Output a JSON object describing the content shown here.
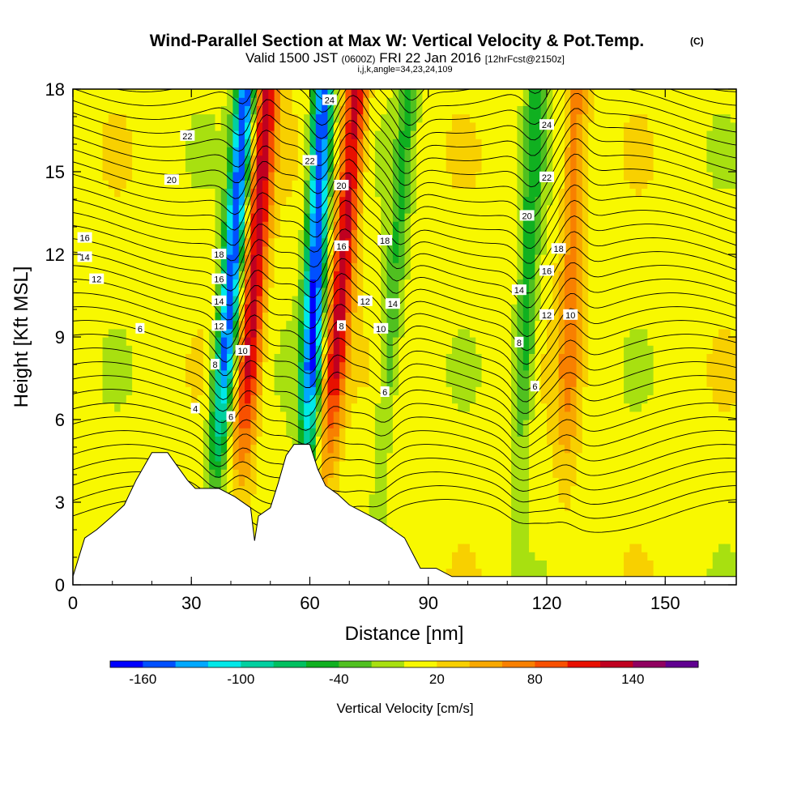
{
  "title": "Wind-Parallel Section at Max W: Vertical Velocity & Pot.Temp.",
  "copyright": "(C)",
  "subtitle": {
    "valid": "Valid 1500 JST",
    "zulu": "(0600Z)",
    "date": "FRI 22 Jan 2016",
    "fcst": "[12hrFcst@2150z]"
  },
  "indices": "i,j,k,angle=34,23,24,109",
  "chart_data": {
    "type": "heatmap",
    "xlabel": "Distance [nm]",
    "ylabel": "Height [Kft MSL]",
    "xlim": [
      0,
      168
    ],
    "ylim": [
      0,
      18
    ],
    "xticks": [
      0,
      30,
      60,
      90,
      120,
      150
    ],
    "yticks": [
      0,
      3,
      6,
      9,
      12,
      15,
      18
    ],
    "field": "Vertical Velocity [cm/s]",
    "colorbar": {
      "label": "Vertical Velocity [cm/s]",
      "tick_labels": [
        "-160",
        "-100",
        "-40",
        "20",
        "80",
        "140"
      ],
      "tick_values": [
        -160,
        -100,
        -40,
        20,
        80,
        140
      ],
      "range": [
        -180,
        180
      ],
      "colors": [
        "#0000ff",
        "#0050ff",
        "#00a8ff",
        "#00e8e8",
        "#00d0a0",
        "#00c060",
        "#10b020",
        "#50c020",
        "#a8e010",
        "#f8f800",
        "#f8d000",
        "#f8a800",
        "#f88000",
        "#f85000",
        "#e81000",
        "#c00020",
        "#900060",
        "#600090"
      ]
    },
    "wave_bands": [
      {
        "x_base": 34,
        "lean": 0.55,
        "sign": "negative",
        "peak": -170
      },
      {
        "x_base": 41,
        "lean": 0.45,
        "sign": "positive",
        "peak": 120
      },
      {
        "x_base": 58,
        "lean": 0.3,
        "sign": "negative",
        "peak": -175
      },
      {
        "x_base": 62,
        "lean": 0.55,
        "sign": "positive",
        "peak": 120
      },
      {
        "x_base": 76,
        "lean": 0.5,
        "sign": "negative",
        "peak": -50
      },
      {
        "x_base": 112,
        "lean": 0.3,
        "sign": "negative",
        "peak": -60
      },
      {
        "x_base": 124,
        "lean": 0.2,
        "sign": "positive",
        "peak": 60
      }
    ],
    "terrain": [
      [
        0,
        0.3
      ],
      [
        3,
        1.7
      ],
      [
        6,
        2.0
      ],
      [
        10,
        2.5
      ],
      [
        13,
        2.9
      ],
      [
        16,
        3.8
      ],
      [
        20,
        4.8
      ],
      [
        24,
        4.8
      ],
      [
        27,
        4.2
      ],
      [
        29,
        3.8
      ],
      [
        31,
        3.5
      ],
      [
        34,
        3.5
      ],
      [
        37,
        3.5
      ],
      [
        41,
        3.2
      ],
      [
        45,
        2.8
      ],
      [
        46,
        1.6
      ],
      [
        47,
        2.5
      ],
      [
        50,
        2.8
      ],
      [
        52,
        3.7
      ],
      [
        54,
        4.7
      ],
      [
        56,
        5.1
      ],
      [
        60,
        5.1
      ],
      [
        62,
        4.2
      ],
      [
        64,
        3.6
      ],
      [
        67,
        3.3
      ],
      [
        70,
        2.9
      ],
      [
        74,
        2.6
      ],
      [
        78,
        2.3
      ],
      [
        81,
        2.0
      ],
      [
        84,
        1.7
      ],
      [
        88,
        0.6
      ],
      [
        92,
        0.6
      ],
      [
        96,
        0.3
      ],
      [
        168,
        0.3
      ]
    ],
    "theta_contour_labels": [
      {
        "label": "22",
        "x": 29,
        "y": 16.3
      },
      {
        "label": "20",
        "x": 25,
        "y": 14.7
      },
      {
        "label": "16",
        "x": 3,
        "y": 12.6
      },
      {
        "label": "14",
        "x": 3,
        "y": 11.9
      },
      {
        "label": "12",
        "x": 6,
        "y": 11.1
      },
      {
        "label": "6",
        "x": 17,
        "y": 9.3
      },
      {
        "label": "4",
        "x": 31,
        "y": 6.4
      },
      {
        "label": "18",
        "x": 37,
        "y": 12.0
      },
      {
        "label": "16",
        "x": 37,
        "y": 11.1
      },
      {
        "label": "14",
        "x": 37,
        "y": 10.3
      },
      {
        "label": "12",
        "x": 37,
        "y": 9.4
      },
      {
        "label": "8",
        "x": 36,
        "y": 8.0
      },
      {
        "label": "10",
        "x": 43,
        "y": 8.5
      },
      {
        "label": "6",
        "x": 40,
        "y": 6.1
      },
      {
        "label": "24",
        "x": 65,
        "y": 17.6
      },
      {
        "label": "22",
        "x": 60,
        "y": 15.4
      },
      {
        "label": "20",
        "x": 68,
        "y": 14.5
      },
      {
        "label": "16",
        "x": 68,
        "y": 12.3
      },
      {
        "label": "18",
        "x": 79,
        "y": 12.5
      },
      {
        "label": "12",
        "x": 74,
        "y": 10.3
      },
      {
        "label": "14",
        "x": 81,
        "y": 10.2
      },
      {
        "label": "8",
        "x": 68,
        "y": 9.4
      },
      {
        "label": "10",
        "x": 78,
        "y": 9.3
      },
      {
        "label": "6",
        "x": 79,
        "y": 7.0
      },
      {
        "label": "24",
        "x": 120,
        "y": 16.7
      },
      {
        "label": "22",
        "x": 120,
        "y": 14.8
      },
      {
        "label": "20",
        "x": 115,
        "y": 13.4
      },
      {
        "label": "18",
        "x": 123,
        "y": 12.2
      },
      {
        "label": "16",
        "x": 120,
        "y": 11.4
      },
      {
        "label": "14",
        "x": 113,
        "y": 10.7
      },
      {
        "label": "12",
        "x": 120,
        "y": 9.8
      },
      {
        "label": "10",
        "x": 126,
        "y": 9.8
      },
      {
        "label": "8",
        "x": 113,
        "y": 8.8
      },
      {
        "label": "6",
        "x": 117,
        "y": 7.2
      }
    ]
  }
}
